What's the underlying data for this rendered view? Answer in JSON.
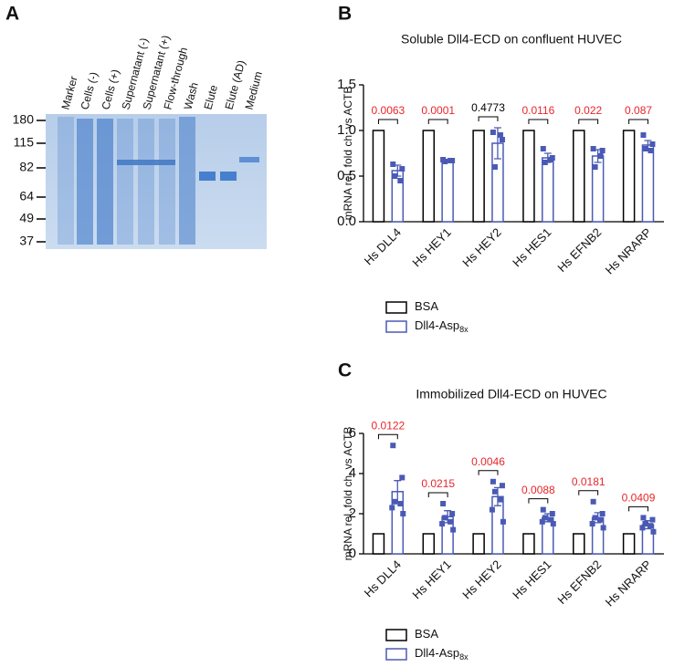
{
  "panels": [
    "A",
    "B",
    "C"
  ],
  "gel": {
    "lanes": [
      "Marker",
      "Cells (-)",
      "Cells (+)",
      "Supernatant (-)",
      "Supernatant (+)",
      "Flow-through",
      "Wash",
      "Elute",
      "Elute (AD)",
      "Medium"
    ],
    "marker_labels": [
      180,
      115,
      82,
      64,
      49,
      37
    ]
  },
  "chart_data": [
    {
      "type": "bar",
      "title": "Soluble Dll4-ECD on confluent HUVEC",
      "y_label": "mRNA rel. fold ch. vs ACTB",
      "categories": [
        "Hs DLL4",
        "Hs HEY1",
        "Hs HEY2",
        "Hs HES1",
        "Hs EFNB2",
        "Hs NRARP"
      ],
      "ylim": [
        0,
        1.5
      ],
      "yticks": [
        {
          "value": 0,
          "label": "0.0"
        },
        0.5,
        {
          "value": 1,
          "label": "1.0"
        },
        1.5
      ],
      "series": [
        {
          "name": "BSA",
          "color": "#000000",
          "values": [
            1,
            1,
            1,
            1,
            1,
            1
          ]
        },
        {
          "name": "Dll4-Asp",
          "name_subscript": "8x",
          "color": "#4a5ab4",
          "values": [
            0.56,
            0.67,
            0.86,
            0.7,
            0.72,
            0.84
          ],
          "errors": [
            0.06,
            0.01,
            0.17,
            0.05,
            0.07,
            0.05
          ],
          "points": [
            [
              0.63,
              0.58,
              0.5,
              0.45
            ],
            [
              0.68,
              0.67,
              0.66,
              0.67
            ],
            [
              0.98,
              0.9,
              0.6,
              0.95
            ],
            [
              0.8,
              0.7,
              0.65,
              0.68
            ],
            [
              0.8,
              0.78,
              0.6,
              0.72
            ],
            [
              0.95,
              0.85,
              0.8,
              0.78
            ]
          ]
        }
      ],
      "annotations": [
        {
          "text": "0.0063",
          "color": "#e8262b"
        },
        {
          "text": "0.0001",
          "color": "#e8262b"
        },
        {
          "text": "0.4773",
          "color": "#000000"
        },
        {
          "text": "0.0116",
          "color": "#e8262b"
        },
        {
          "text": "0.022",
          "color": "#e8262b"
        },
        {
          "text": "0.087",
          "color": "#e8262b"
        }
      ]
    },
    {
      "type": "bar",
      "title": "Immobilized Dll4-ECD on HUVEC",
      "y_label": "mRNA rel. fold ch. vs ACTB",
      "categories": [
        "Hs DLL4",
        "Hs HEY1",
        "Hs HEY2",
        "Hs HES1",
        "Hs EFNB2",
        "Hs NRARP"
      ],
      "ylim": [
        0,
        6
      ],
      "yticks": [
        0,
        2,
        4,
        6
      ],
      "series": [
        {
          "name": "BSA",
          "color": "#000000",
          "values": [
            1,
            1,
            1,
            1,
            1,
            1
          ]
        },
        {
          "name": "Dll4-Asp",
          "name_subscript": "8x",
          "color": "#4a5ab4",
          "values": [
            3.1,
            1.85,
            2.85,
            1.8,
            1.8,
            1.45
          ],
          "errors": [
            0.55,
            0.3,
            0.45,
            0.2,
            0.25,
            0.2
          ],
          "points": [
            [
              5.4,
              3.8,
              2.6,
              2.5,
              2.3,
              2.0
            ],
            [
              2.5,
              2.0,
              1.8,
              1.6,
              1.5,
              1.2
            ],
            [
              3.6,
              3.4,
              3.1,
              2.7,
              2.2,
              1.6
            ],
            [
              2.2,
              2.0,
              1.8,
              1.7,
              1.6,
              1.5
            ],
            [
              2.6,
              2.0,
              1.8,
              1.7,
              1.5,
              1.3
            ],
            [
              1.8,
              1.7,
              1.5,
              1.4,
              1.3,
              1.1
            ]
          ]
        }
      ],
      "annotations": [
        {
          "text": "0.0122",
          "color": "#e8262b"
        },
        {
          "text": "0.0215",
          "color": "#e8262b"
        },
        {
          "text": "0.0046",
          "color": "#e8262b"
        },
        {
          "text": "0.0088",
          "color": "#e8262b"
        },
        {
          "text": "0.0181",
          "color": "#e8262b"
        },
        {
          "text": "0.0409",
          "color": "#e8262b"
        }
      ]
    }
  ]
}
